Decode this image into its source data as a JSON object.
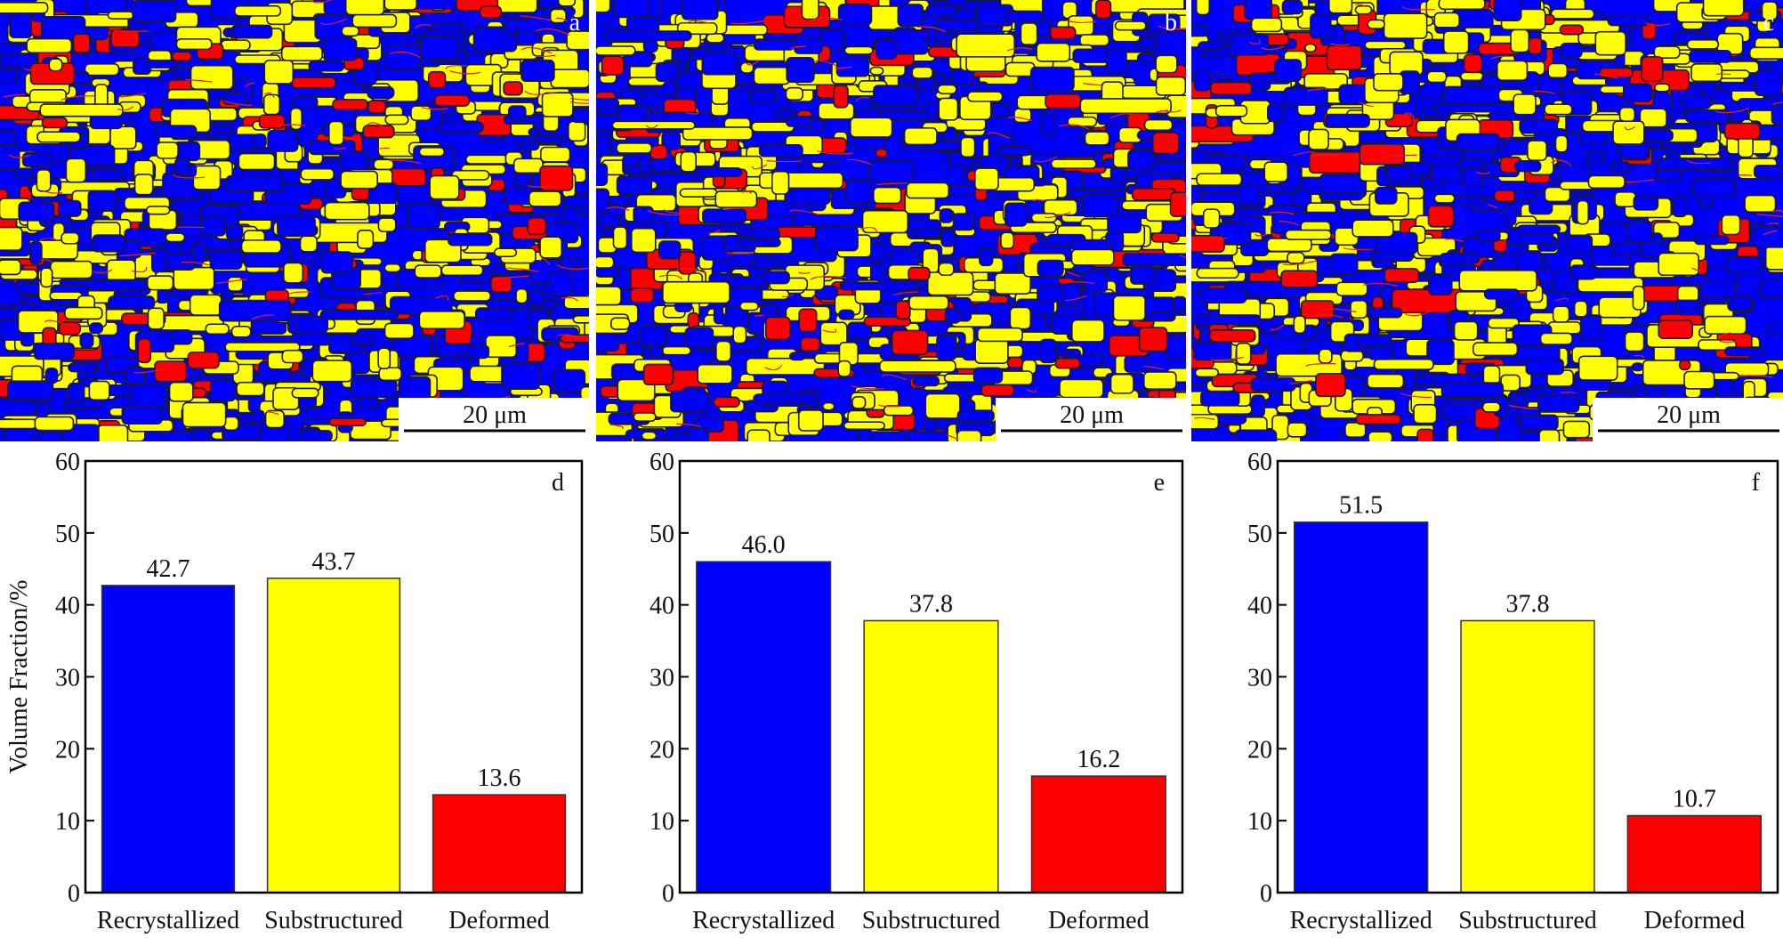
{
  "maps": [
    {
      "label": "a",
      "scale_bar": "20 μm"
    },
    {
      "label": "b",
      "scale_bar": "20 μm"
    },
    {
      "label": "c",
      "scale_bar": "20 μm"
    }
  ],
  "chart_data": [
    {
      "type": "bar",
      "label": "d",
      "y_label": "Volume Fraction/%",
      "categories": [
        "Recrystallized",
        "Substructured",
        "Deformed"
      ],
      "values": [
        42.7,
        43.7,
        13.6
      ],
      "value_labels": [
        "42.7",
        "43.7",
        "13.6"
      ],
      "colors": [
        "#0000ff",
        "#ffff00",
        "#ff0000"
      ],
      "ylim": [
        0,
        60
      ],
      "yticks": [
        0,
        10,
        20,
        30,
        40,
        50,
        60
      ]
    },
    {
      "type": "bar",
      "label": "e",
      "categories": [
        "Recrystallized",
        "Substructured",
        "Deformed"
      ],
      "values": [
        46.0,
        37.8,
        16.2
      ],
      "value_labels": [
        "46.0",
        "37.8",
        "16.2"
      ],
      "colors": [
        "#0000ff",
        "#ffff00",
        "#ff0000"
      ],
      "ylim": [
        0,
        60
      ],
      "yticks": [
        0,
        10,
        20,
        30,
        40,
        50,
        60
      ]
    },
    {
      "type": "bar",
      "label": "f",
      "categories": [
        "Recrystallized",
        "Substructured",
        "Deformed"
      ],
      "values": [
        51.5,
        37.8,
        10.7
      ],
      "value_labels": [
        "51.5",
        "37.8",
        "10.7"
      ],
      "colors": [
        "#0000ff",
        "#ffff00",
        "#ff0000"
      ],
      "ylim": [
        0,
        60
      ],
      "yticks": [
        0,
        10,
        20,
        30,
        40,
        50,
        60
      ]
    }
  ]
}
